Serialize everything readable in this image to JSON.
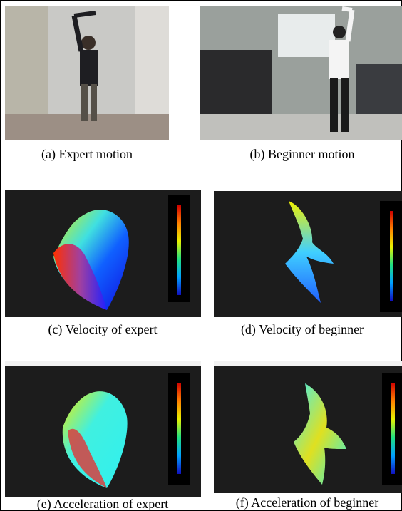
{
  "panels": [
    {
      "caption": "(a) Expert motion"
    },
    {
      "caption": "(b) Beginner motion"
    },
    {
      "caption": "(c) Velocity of expert"
    },
    {
      "caption": "(d) Velocity of beginner"
    },
    {
      "caption": "(e) Acceleration of expert"
    },
    {
      "caption": "(f) Acceleration of beginner"
    }
  ]
}
